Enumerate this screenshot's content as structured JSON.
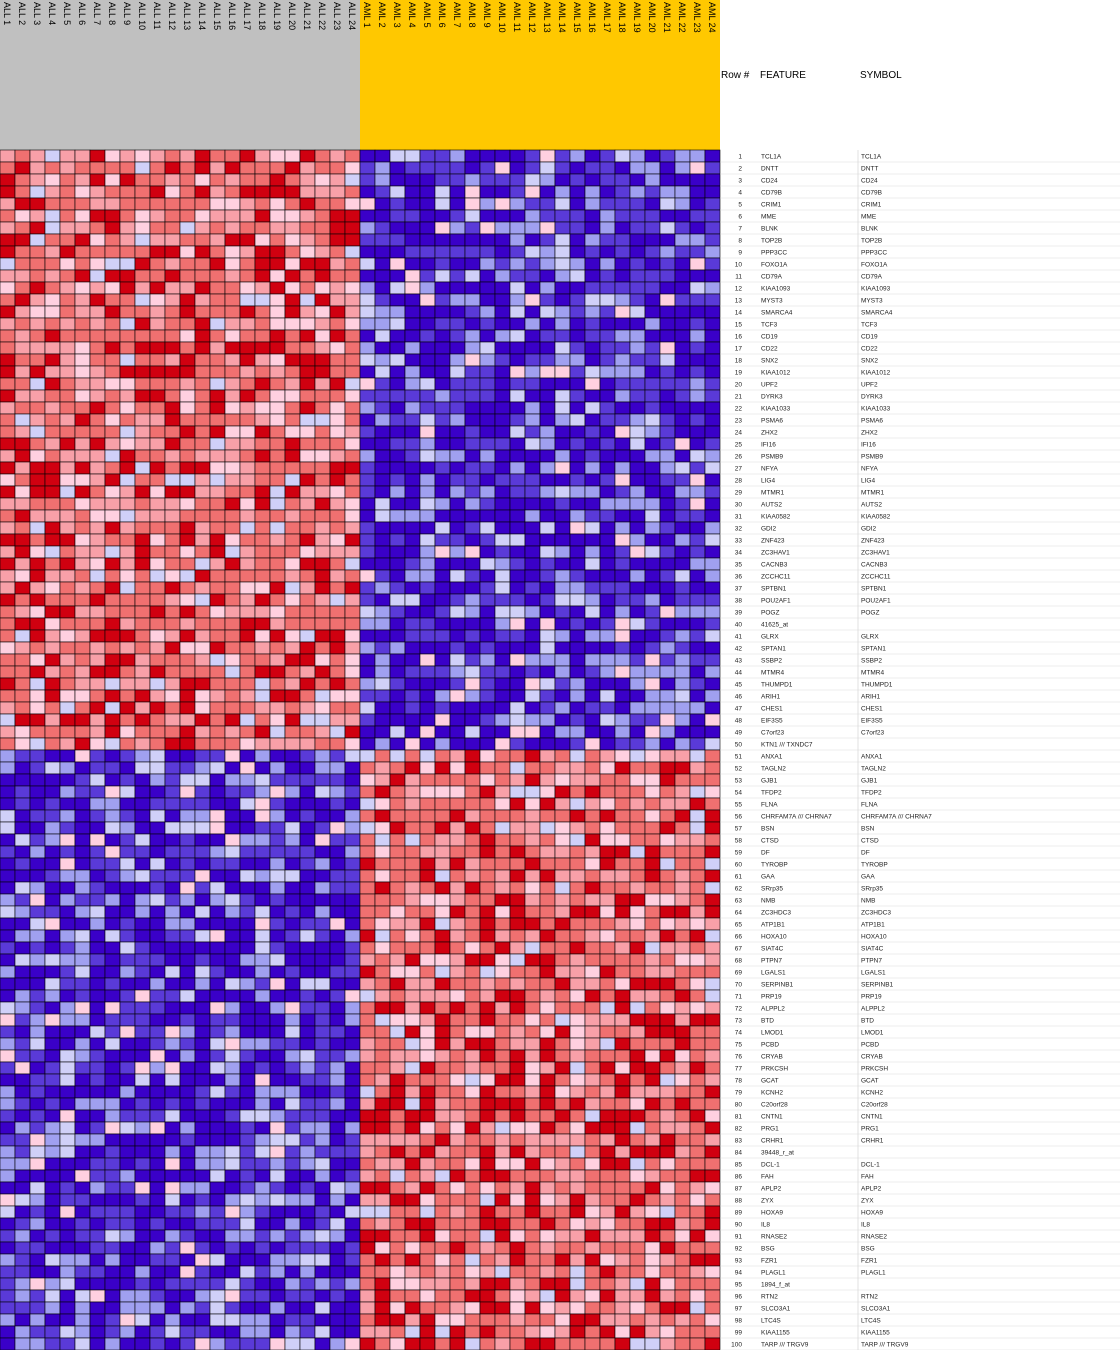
{
  "chart_data": {
    "type": "heatmap",
    "title": "",
    "groups": [
      {
        "name": "ALL",
        "color": "#c0c0c0"
      },
      {
        "name": "AML",
        "color": "#ffc800"
      }
    ],
    "columns": [
      "ALL 1",
      "ALL 2",
      "ALL 3",
      "ALL 4",
      "ALL 5",
      "ALL 6",
      "ALL 7",
      "ALL 8",
      "ALL 9",
      "ALL 10",
      "ALL 11",
      "ALL 12",
      "ALL 13",
      "ALL 14",
      "ALL 15",
      "ALL 16",
      "ALL 17",
      "ALL 18",
      "ALL 19",
      "ALL 20",
      "ALL 21",
      "ALL 22",
      "ALL 23",
      "ALL 24",
      "AML 1",
      "AML 2",
      "AML 3",
      "AML 4",
      "AML 5",
      "AML 6",
      "AML 7",
      "AML 8",
      "AML 9",
      "AML 10",
      "AML 11",
      "AML 12",
      "AML 13",
      "AML 14",
      "AML 15",
      "AML 16",
      "AML 17",
      "AML 18",
      "AML 19",
      "AML 20",
      "AML 21",
      "AML 22",
      "AML 23",
      "AML 24"
    ],
    "table_headers": {
      "row_num": "Row #",
      "feature": "FEATURE",
      "symbol": "SYMBOL"
    },
    "color_scale": {
      "low": "#3a00c8",
      "mid_low": "#a0a0f0",
      "mid": "#ffd0e0",
      "mid_high": "#f07070",
      "high": "#d00010"
    },
    "pattern": "rows 1-50 high in ALL / low in AML; rows 51-100 low in ALL / high in AML",
    "rows": [
      {
        "n": "1",
        "feature": "TCL1A",
        "symbol": "TCL1A"
      },
      {
        "n": "2",
        "feature": "DNTT",
        "symbol": "DNTT"
      },
      {
        "n": "3",
        "feature": "CD24",
        "symbol": "CD24"
      },
      {
        "n": "4",
        "feature": "CD79B",
        "symbol": "CD79B"
      },
      {
        "n": "5",
        "feature": "CRIM1",
        "symbol": "CRIM1"
      },
      {
        "n": "6",
        "feature": "MME",
        "symbol": "MME"
      },
      {
        "n": "7",
        "feature": "BLNK",
        "symbol": "BLNK"
      },
      {
        "n": "8",
        "feature": "TOP2B",
        "symbol": "TOP2B"
      },
      {
        "n": "9",
        "feature": "PPP3CC",
        "symbol": "PPP3CC"
      },
      {
        "n": "10",
        "feature": "FOXO1A",
        "symbol": "FOXO1A"
      },
      {
        "n": "11",
        "feature": "CD79A",
        "symbol": "CD79A"
      },
      {
        "n": "12",
        "feature": "KIAA1093",
        "symbol": "KIAA1093"
      },
      {
        "n": "13",
        "feature": "MYST3",
        "symbol": "MYST3"
      },
      {
        "n": "14",
        "feature": "SMARCA4",
        "symbol": "SMARCA4"
      },
      {
        "n": "15",
        "feature": "TCF3",
        "symbol": "TCF3"
      },
      {
        "n": "16",
        "feature": "CD19",
        "symbol": "CD19"
      },
      {
        "n": "17",
        "feature": "CD22",
        "symbol": "CD22"
      },
      {
        "n": "18",
        "feature": "SNX2",
        "symbol": "SNX2"
      },
      {
        "n": "19",
        "feature": "KIAA1012",
        "symbol": "KIAA1012"
      },
      {
        "n": "20",
        "feature": "UPF2",
        "symbol": "UPF2"
      },
      {
        "n": "21",
        "feature": "DYRK3",
        "symbol": "DYRK3"
      },
      {
        "n": "22",
        "feature": "KIAA1033",
        "symbol": "KIAA1033"
      },
      {
        "n": "23",
        "feature": "PSMA6",
        "symbol": "PSMA6"
      },
      {
        "n": "24",
        "feature": "ZHX2",
        "symbol": "ZHX2"
      },
      {
        "n": "25",
        "feature": "IFI16",
        "symbol": "IFI16"
      },
      {
        "n": "26",
        "feature": "PSMB9",
        "symbol": "PSMB9"
      },
      {
        "n": "27",
        "feature": "NFYA",
        "symbol": "NFYA"
      },
      {
        "n": "28",
        "feature": "LIG4",
        "symbol": "LIG4"
      },
      {
        "n": "29",
        "feature": "MTMR1",
        "symbol": "MTMR1"
      },
      {
        "n": "30",
        "feature": "AUTS2",
        "symbol": "AUTS2"
      },
      {
        "n": "31",
        "feature": "KIAA0582",
        "symbol": "KIAA0582"
      },
      {
        "n": "32",
        "feature": "GDI2",
        "symbol": "GDI2"
      },
      {
        "n": "33",
        "feature": "ZNF423",
        "symbol": "ZNF423"
      },
      {
        "n": "34",
        "feature": "ZC3HAV1",
        "symbol": "ZC3HAV1"
      },
      {
        "n": "35",
        "feature": "CACNB3",
        "symbol": "CACNB3"
      },
      {
        "n": "36",
        "feature": "ZCCHC11",
        "symbol": "ZCCHC11"
      },
      {
        "n": "37",
        "feature": "SPTBN1",
        "symbol": "SPTBN1"
      },
      {
        "n": "38",
        "feature": "POU2AF1",
        "symbol": "POU2AF1"
      },
      {
        "n": "39",
        "feature": "POGZ",
        "symbol": "POGZ"
      },
      {
        "n": "40",
        "feature": "41625_at",
        "symbol": ""
      },
      {
        "n": "41",
        "feature": "GLRX",
        "symbol": "GLRX"
      },
      {
        "n": "42",
        "feature": "SPTAN1",
        "symbol": "SPTAN1"
      },
      {
        "n": "43",
        "feature": "SSBP2",
        "symbol": "SSBP2"
      },
      {
        "n": "44",
        "feature": "MTMR4",
        "symbol": "MTMR4"
      },
      {
        "n": "45",
        "feature": "THUMPD1",
        "symbol": "THUMPD1"
      },
      {
        "n": "46",
        "feature": "ARIH1",
        "symbol": "ARIH1"
      },
      {
        "n": "47",
        "feature": "CHES1",
        "symbol": "CHES1"
      },
      {
        "n": "48",
        "feature": "EIF3S5",
        "symbol": "EIF3S5"
      },
      {
        "n": "49",
        "feature": "C7orf23",
        "symbol": "C7orf23"
      },
      {
        "n": "50",
        "feature": "KTN1 /// TXNDC7",
        "symbol": ""
      },
      {
        "n": "51",
        "feature": "ANXA1",
        "symbol": "ANXA1"
      },
      {
        "n": "52",
        "feature": "TAGLN2",
        "symbol": "TAGLN2"
      },
      {
        "n": "53",
        "feature": "GJB1",
        "symbol": "GJB1"
      },
      {
        "n": "54",
        "feature": "TFDP2",
        "symbol": "TFDP2"
      },
      {
        "n": "55",
        "feature": "FLNA",
        "symbol": "FLNA"
      },
      {
        "n": "56",
        "feature": "CHRFAM7A /// CHRNA7",
        "symbol": "CHRFAM7A /// CHRNA7"
      },
      {
        "n": "57",
        "feature": "BSN",
        "symbol": "BSN"
      },
      {
        "n": "58",
        "feature": "CTSD",
        "symbol": "CTSD"
      },
      {
        "n": "59",
        "feature": "DF",
        "symbol": "DF"
      },
      {
        "n": "60",
        "feature": "TYROBP",
        "symbol": "TYROBP"
      },
      {
        "n": "61",
        "feature": "GAA",
        "symbol": "GAA"
      },
      {
        "n": "62",
        "feature": "SRrp35",
        "symbol": "SRrp35"
      },
      {
        "n": "63",
        "feature": "NMB",
        "symbol": "NMB"
      },
      {
        "n": "64",
        "feature": "ZC3HDC3",
        "symbol": "ZC3HDC3"
      },
      {
        "n": "65",
        "feature": "ATP1B1",
        "symbol": "ATP1B1"
      },
      {
        "n": "66",
        "feature": "HOXA10",
        "symbol": "HOXA10"
      },
      {
        "n": "67",
        "feature": "SIAT4C",
        "symbol": "SIAT4C"
      },
      {
        "n": "68",
        "feature": "PTPN7",
        "symbol": "PTPN7"
      },
      {
        "n": "69",
        "feature": "LGALS1",
        "symbol": "LGALS1"
      },
      {
        "n": "70",
        "feature": "SERPINB1",
        "symbol": "SERPINB1"
      },
      {
        "n": "71",
        "feature": "PRP19",
        "symbol": "PRP19"
      },
      {
        "n": "72",
        "feature": "ALPPL2",
        "symbol": "ALPPL2"
      },
      {
        "n": "73",
        "feature": "BTD",
        "symbol": "BTD"
      },
      {
        "n": "74",
        "feature": "LMOD1",
        "symbol": "LMOD1"
      },
      {
        "n": "75",
        "feature": "PCBD",
        "symbol": "PCBD"
      },
      {
        "n": "76",
        "feature": "CRYAB",
        "symbol": "CRYAB"
      },
      {
        "n": "77",
        "feature": "PRKCSH",
        "symbol": "PRKCSH"
      },
      {
        "n": "78",
        "feature": "GCAT",
        "symbol": "GCAT"
      },
      {
        "n": "79",
        "feature": "KCNH2",
        "symbol": "KCNH2"
      },
      {
        "n": "80",
        "feature": "C20orf28",
        "symbol": "C20orf28"
      },
      {
        "n": "81",
        "feature": "CNTN1",
        "symbol": "CNTN1"
      },
      {
        "n": "82",
        "feature": "PRG1",
        "symbol": "PRG1"
      },
      {
        "n": "83",
        "feature": "CRHR1",
        "symbol": "CRHR1"
      },
      {
        "n": "84",
        "feature": "39448_r_at",
        "symbol": ""
      },
      {
        "n": "85",
        "feature": "DCL-1",
        "symbol": "DCL-1"
      },
      {
        "n": "86",
        "feature": "FAH",
        "symbol": "FAH"
      },
      {
        "n": "87",
        "feature": "APLP2",
        "symbol": "APLP2"
      },
      {
        "n": "88",
        "feature": "ZYX",
        "symbol": "ZYX"
      },
      {
        "n": "89",
        "feature": "HOXA9",
        "symbol": "HOXA9"
      },
      {
        "n": "90",
        "feature": "IL8",
        "symbol": "IL8"
      },
      {
        "n": "91",
        "feature": "RNASE2",
        "symbol": "RNASE2"
      },
      {
        "n": "92",
        "feature": "BSG",
        "symbol": "BSG"
      },
      {
        "n": "93",
        "feature": "FZR1",
        "symbol": "FZR1"
      },
      {
        "n": "94",
        "feature": "PLAGL1",
        "symbol": "PLAGL1"
      },
      {
        "n": "95",
        "feature": "1894_f_at",
        "symbol": ""
      },
      {
        "n": "96",
        "feature": "RTN2",
        "symbol": "RTN2"
      },
      {
        "n": "97",
        "feature": "SLCO3A1",
        "symbol": "SLCO3A1"
      },
      {
        "n": "98",
        "feature": "LTC4S",
        "symbol": "LTC4S"
      },
      {
        "n": "99",
        "feature": "KIAA1155",
        "symbol": "KIAA1155"
      },
      {
        "n": "100",
        "feature": "TARP /// TRGV9",
        "symbol": "TARP /// TRGV9"
      }
    ]
  }
}
